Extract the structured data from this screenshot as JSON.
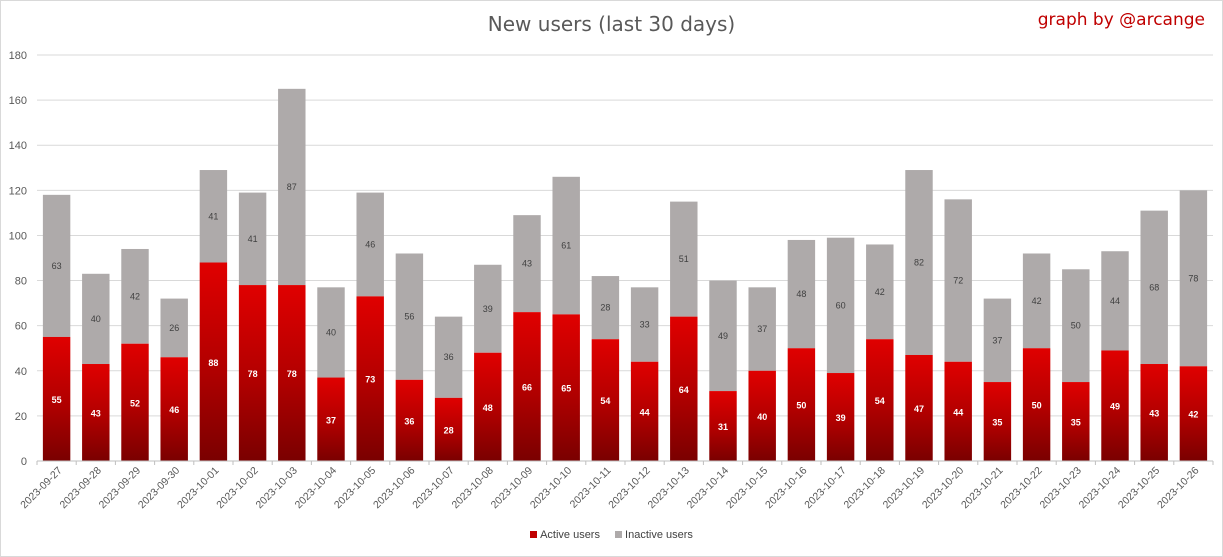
{
  "header": {
    "credit": "graph by @arcange"
  },
  "chart_data": {
    "type": "bar",
    "stacked": true,
    "title": "New users (last 30 days)",
    "categories": [
      "2023-09-27",
      "2023-09-28",
      "2023-09-29",
      "2023-09-30",
      "2023-10-01",
      "2023-10-02",
      "2023-10-03",
      "2023-10-04",
      "2023-10-05",
      "2023-10-06",
      "2023-10-07",
      "2023-10-08",
      "2023-10-09",
      "2023-10-10",
      "2023-10-11",
      "2023-10-12",
      "2023-10-13",
      "2023-10-14",
      "2023-10-15",
      "2023-10-16",
      "2023-10-17",
      "2023-10-18",
      "2023-10-19",
      "2023-10-20",
      "2023-10-21",
      "2023-10-22",
      "2023-10-23",
      "2023-10-24",
      "2023-10-25",
      "2023-10-26"
    ],
    "series": [
      {
        "name": "Active users",
        "color": "#c00000",
        "values": [
          55,
          43,
          52,
          46,
          88,
          78,
          78,
          37,
          73,
          36,
          28,
          48,
          66,
          65,
          54,
          44,
          64,
          31,
          40,
          50,
          39,
          54,
          47,
          44,
          35,
          50,
          35,
          49,
          43,
          42
        ]
      },
      {
        "name": "Inactive users",
        "color": "#aeaaaa",
        "values": [
          63,
          40,
          42,
          26,
          41,
          41,
          87,
          40,
          46,
          56,
          36,
          39,
          43,
          61,
          28,
          33,
          51,
          49,
          37,
          48,
          60,
          42,
          82,
          72,
          37,
          42,
          50,
          44,
          68,
          78
        ]
      }
    ],
    "ylim": [
      0,
      180
    ],
    "yticks": [
      0,
      20,
      40,
      60,
      80,
      100,
      120,
      140,
      160,
      180
    ],
    "grid": true,
    "legend_position": "bottom"
  }
}
